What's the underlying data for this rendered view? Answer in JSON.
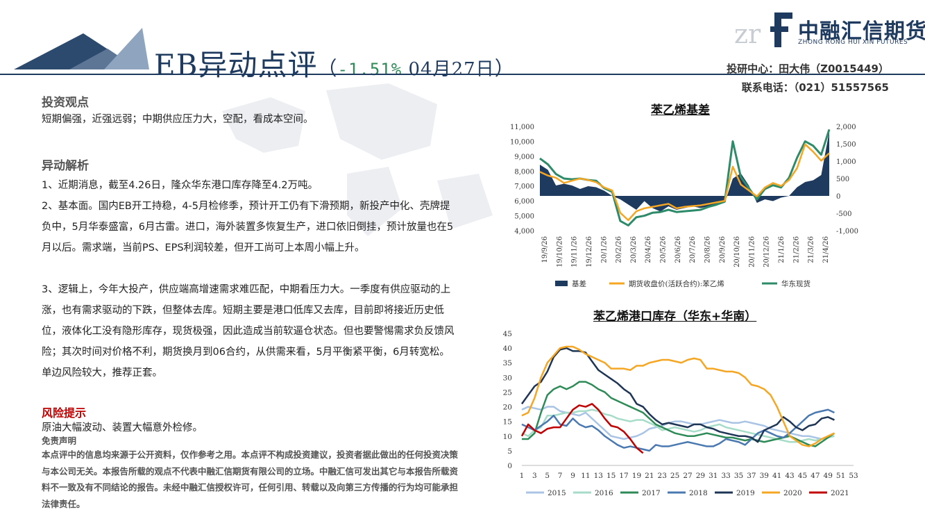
{
  "header": {
    "title_main": "EB异动点评",
    "paren_open": "（",
    "change": "-1.51%",
    "date": " 04月27日",
    "paren_close": "）"
  },
  "logo": {
    "cn_name": "中融汇信期货",
    "en_name": "ZHONG RONG HUI XIN FUTURES"
  },
  "contact": {
    "researcher": "投研中心：田大伟（Z0015449）",
    "phone": "联系电话：（021）51557565"
  },
  "view": {
    "heading": "投资观点",
    "text": "短期偏强，近强远弱；中期供应压力大，空配，看成本空间。"
  },
  "analysis": {
    "heading": "异动解析",
    "p1": "1、近期消息，截至4.26日，隆众华东港口库存降至4.2万吨。",
    "p2": "2、基本面。国内EB开工持稳，4-5月检修季，预计开工仍有下滑预期，新投产中化、壳牌提负中，5月华泰盛富，6月古雷。进口，海外装置多恢复生产，进口依旧倒挂，预计放量也在5月以后。需求端，当前PS、EPS利润较差，但开工尚可上本周小幅上升。",
    "p3": "3、逻辑上，今年大投产，供应端高增速需求难匹配，中期看压力大。一季度有供应驱动的上涨，也有需求驱动的下跌，但整体去库。短期主要是港口低库又去库，目前即将接近历史低位，液体化工没有隐形库存，现货极强，因此造成当前软逼仓状态。但也要警惕需求负反馈风险；其次时间对价格不利，期货换月到06合约，从供需来看，5月平衡紧平衡，6月转宽松。单边风险较大，推荐正套。"
  },
  "risk": {
    "heading": "风险提示",
    "text": "原油大幅波动、装置大幅意外检修。"
  },
  "disclaimer": {
    "heading": "免责声明",
    "text": "本点评中的信息均来源于公开资料，仅作参考之用。本点评不构成投资建议，投资者据此做出的任何投资决策与本公司无关。本报告所载的观点不代表中融汇信期货有限公司的立场。中融汇信可发出其它与本报告所载资料不一致及有不同结论的报告。未经中融汇信授权许可，任何引用、转载以及向第三方传播的行为均可能承担法律责任。"
  },
  "colors": {
    "navy": "#1e3a5f",
    "orange": "#f5a623",
    "teal": "#2e8b6a",
    "red": "#c00000",
    "s2015": "#a9c4e4",
    "s2016": "#a6dcc8",
    "s2017": "#2e8b57",
    "s2018": "#4a78b0",
    "s2019": "#1f3555",
    "s2020": "#f5a623",
    "s2021": "#c00000"
  },
  "chart_data": [
    {
      "type": "line",
      "title": "苯乙烯基差",
      "x_tick_labels": [
        "19/9/26",
        "19/10/26",
        "19/11/26",
        "19/12/26",
        "20/1/26",
        "20/2/26",
        "20/3/26",
        "20/4/26",
        "20/5/26",
        "20/6/26",
        "20/7/26",
        "20/8/26",
        "20/9/26",
        "20/10/26",
        "20/11/26",
        "20/12/26",
        "21/1/26",
        "21/2/26",
        "21/3/26",
        "21/4/26"
      ],
      "y_left_ticks": [
        "11,000",
        "10,000",
        "9,000",
        "8,000",
        "7,000",
        "6,000",
        "5,000",
        "4,000"
      ],
      "y_right_ticks": [
        "2,000",
        "1,500",
        "1,000",
        "500",
        "0",
        "-500",
        "-1,000"
      ],
      "ylim_left": [
        4000,
        11000
      ],
      "ylim_right": [
        -1000,
        2000
      ],
      "legend": [
        "基差",
        "期货收盘价(活跃合约):苯乙烯",
        "华东现货"
      ],
      "legend_position": "bottom",
      "series": [
        {
          "name": "基差",
          "axis": "right",
          "style": "area",
          "values": [
            900,
            750,
            300,
            350,
            300,
            200,
            280,
            250,
            150,
            0,
            -100,
            -250,
            -400,
            -150,
            -350,
            -450,
            -300,
            -400,
            -350,
            -300,
            -350,
            -300,
            -250,
            -200,
            500,
            650,
            300,
            -200,
            -100,
            -150,
            -50,
            0,
            250,
            400,
            450,
            600,
            1850
          ]
        },
        {
          "name": "期货收盘价(活跃合约):苯乙烯",
          "axis": "left",
          "values": [
            7950,
            7700,
            7550,
            7200,
            7350,
            7500,
            7400,
            7250,
            6900,
            6700,
            5200,
            4700,
            5300,
            5500,
            5600,
            5700,
            5800,
            5500,
            5600,
            5650,
            5700,
            5800,
            5900,
            6000,
            8300,
            7100,
            6700,
            6300,
            6900,
            7200,
            7000,
            7400,
            8200,
            9800,
            9300,
            8700,
            9200
          ]
        },
        {
          "name": "华东现货",
          "axis": "left",
          "values": [
            8850,
            8450,
            7800,
            7500,
            7450,
            7500,
            7400,
            7350,
            6850,
            6600,
            4650,
            4350,
            4900,
            5000,
            5200,
            5250,
            5400,
            5250,
            5300,
            5350,
            5400,
            5600,
            5750,
            5950,
            10000,
            7600,
            6850,
            6100,
            6800,
            7050,
            6900,
            7550,
            8900,
            10000,
            9700,
            9100,
            10800
          ]
        }
      ]
    },
    {
      "type": "line",
      "title": "苯乙烯港口库存（华东+华南）",
      "x_ticks": [
        1,
        3,
        5,
        7,
        9,
        11,
        13,
        15,
        17,
        19,
        21,
        23,
        25,
        27,
        29,
        31,
        33,
        35,
        37,
        39,
        41,
        43,
        45,
        47,
        49,
        51,
        53
      ],
      "ylim": [
        0,
        45
      ],
      "y_ticks": [
        0,
        5,
        10,
        15,
        20,
        25,
        30,
        35,
        40,
        45
      ],
      "legend_position": "bottom",
      "series": [
        {
          "name": "2015",
          "values": [
            19,
            20,
            19.5,
            19,
            20,
            20,
            18.5,
            18,
            17.5,
            17,
            18,
            16,
            14,
            12,
            10,
            9.5,
            9,
            9.5,
            10,
            11,
            12.5,
            13,
            13.5,
            14.5,
            15,
            15,
            14.5,
            14,
            14,
            14.5,
            15,
            15.5,
            15,
            14.5,
            14.5,
            15,
            14.5,
            14,
            13.5,
            12.5,
            12,
            11.5,
            11,
            10.5,
            10,
            10,
            9.5,
            9,
            9.5,
            10
          ]
        },
        {
          "name": "2016",
          "values": [
            11,
            10,
            12,
            13,
            17,
            17,
            17.5,
            18,
            18,
            18.5,
            18.5,
            19,
            18.5,
            17.5,
            17,
            16,
            15.5,
            15,
            15.5,
            15.5,
            14.5,
            13.5,
            12,
            12.5,
            13,
            12.5,
            12,
            11.5,
            12,
            13,
            13.5,
            14,
            13,
            12.5,
            12,
            11.5,
            11,
            10.5,
            10,
            9.5,
            9,
            8.5,
            8,
            8,
            8.5,
            9,
            8.5,
            9,
            9.5,
            10
          ]
        },
        {
          "name": "2017",
          "values": [
            9,
            9,
            11,
            18,
            24,
            26,
            27,
            26,
            27,
            28.5,
            28.5,
            27.5,
            26,
            25,
            23,
            22,
            21,
            20,
            19,
            18,
            16,
            14,
            13,
            12,
            11,
            10.5,
            10,
            10,
            10.5,
            11,
            10.5,
            10,
            9.5,
            9.5,
            9,
            8.5,
            9,
            8.5,
            8,
            8.5,
            9,
            9.5,
            10,
            9,
            8,
            7,
            6.5,
            8,
            9.5,
            11
          ]
        },
        {
          "name": "2018",
          "values": [
            14,
            13,
            12,
            13.5,
            15,
            17,
            14,
            13.5,
            16,
            14,
            13,
            13.5,
            12,
            10,
            8.5,
            7,
            6,
            6.5,
            6,
            5.5,
            5,
            7,
            6.5,
            6.5,
            7,
            7.5,
            8,
            7.5,
            7,
            6.5,
            6.5,
            7.5,
            9,
            8.5,
            8,
            7,
            9,
            11,
            12,
            11,
            10,
            9.5,
            11,
            13,
            15,
            17,
            18,
            18.5,
            19,
            18
          ]
        },
        {
          "name": "2019",
          "values": [
            21,
            24,
            27,
            28.5,
            32,
            37,
            39.5,
            40,
            39,
            39,
            38.5,
            35.5,
            32.5,
            31,
            29.5,
            28,
            26,
            24.5,
            21,
            20,
            17.5,
            15.5,
            14,
            14.5,
            14,
            13.5,
            13,
            14,
            14,
            13,
            12.5,
            11.5,
            11,
            10.5,
            10,
            10,
            9.5,
            8,
            12,
            13,
            14,
            16.5,
            15,
            13,
            12,
            13.5,
            14,
            16,
            16.5,
            15.5
          ]
        },
        {
          "name": "2020",
          "values": [
            17,
            18,
            23,
            30,
            35,
            37.5,
            40,
            40.5,
            40.5,
            39.5,
            38,
            37,
            36,
            35,
            33,
            33,
            33,
            32.5,
            34,
            34,
            35,
            35.5,
            36,
            36,
            35.5,
            35,
            36,
            36.5,
            36,
            33,
            33,
            32.5,
            32,
            32,
            31.5,
            30,
            27.5,
            27,
            26,
            24,
            20,
            15,
            10,
            8.5,
            7,
            6.5,
            7.5,
            9,
            10,
            11
          ]
        },
        {
          "name": "2021",
          "values": [
            10,
            14,
            12,
            11,
            12.5,
            13,
            13,
            16,
            19,
            20.5,
            20,
            21,
            19,
            16,
            13.5,
            13,
            11.5,
            9,
            6,
            4.2
          ]
        }
      ]
    }
  ]
}
